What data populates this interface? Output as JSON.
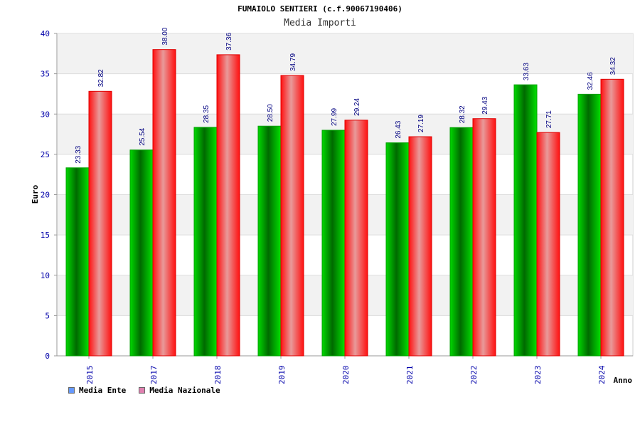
{
  "chart_data": {
    "type": "bar",
    "title": "FUMAIOLO SENTIERI (c.f.90067190406)",
    "subtitle": "Media Importi",
    "xlabel": "Anno",
    "ylabel": "Euro",
    "ylim": [
      0,
      40
    ],
    "yticks": [
      0,
      5,
      10,
      15,
      20,
      25,
      30,
      35,
      40
    ],
    "categories": [
      "2015",
      "2017",
      "2018",
      "2019",
      "2020",
      "2021",
      "2022",
      "2023",
      "2024"
    ],
    "series": [
      {
        "name": "Media Ente",
        "values": [
          23.33,
          25.54,
          28.35,
          28.5,
          27.99,
          26.43,
          28.32,
          33.63,
          32.46
        ],
        "labels": [
          "23.33",
          "25.54",
          "28.35",
          "28.50",
          "27.99",
          "26.43",
          "28.32",
          "33.63",
          "32.46"
        ],
        "color": "#00c000",
        "legend_color": "#6699ff"
      },
      {
        "name": "Media Nazionale",
        "values": [
          32.82,
          38.0,
          37.36,
          34.79,
          29.24,
          27.19,
          29.43,
          27.71,
          34.32
        ],
        "labels": [
          "32.82",
          "38.00",
          "37.36",
          "34.79",
          "29.24",
          "27.19",
          "29.43",
          "27.71",
          "34.32"
        ],
        "color": "#ff2020",
        "legend_color": "#e080b0"
      }
    ],
    "grid": true,
    "legend_position": "bottom-left"
  }
}
